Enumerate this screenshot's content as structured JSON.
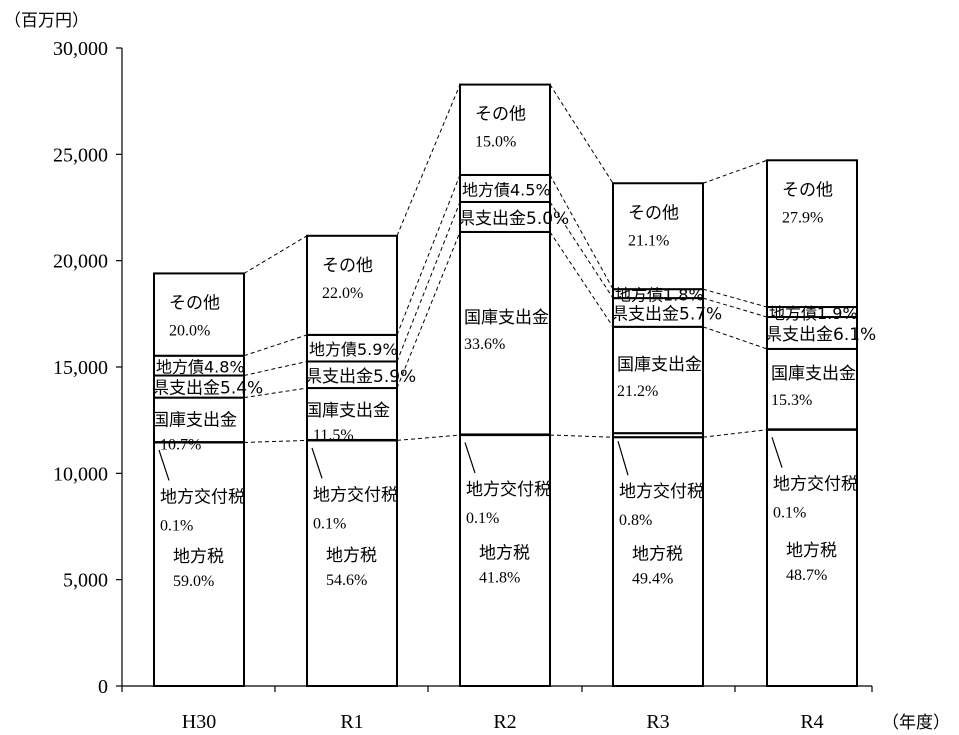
{
  "chart_data": {
    "type": "bar",
    "stacked": true,
    "y_unit_label": "（百万円）",
    "x_unit_label": "（年度）",
    "ylim": [
      0,
      30000
    ],
    "yticks": [
      "0",
      "5,000",
      "10,000",
      "15,000",
      "20,000",
      "25,000",
      "30,000"
    ],
    "ytick_values": [
      0,
      5000,
      10000,
      15000,
      20000,
      25000,
      30000
    ],
    "categories": [
      "H30",
      "R1",
      "R2",
      "R3",
      "R4"
    ],
    "grid": false,
    "legend": "none",
    "series": [
      {
        "key": "chihozei",
        "values": [
          11450,
          11550,
          11800,
          11700,
          12050
        ]
      },
      {
        "key": "kofuzei",
        "values": [
          20,
          20,
          30,
          190,
          20
        ]
      },
      {
        "key": "kokko",
        "values": [
          2090,
          2440,
          9520,
          5000,
          3780
        ]
      },
      {
        "key": "kenshi",
        "values": [
          1040,
          1250,
          1410,
          1350,
          1500
        ]
      },
      {
        "key": "chihosai",
        "values": [
          930,
          1250,
          1270,
          420,
          470
        ]
      },
      {
        "key": "sonota",
        "values": [
          3870,
          4660,
          4250,
          4980,
          6900
        ]
      }
    ],
    "totals": [
      19400,
      21170,
      28280,
      23640,
      24720
    ],
    "segment_labels": {
      "chihozei": {
        "name": "地方税",
        "pct": [
          "59.0%",
          "54.6%",
          "41.8%",
          "49.4%",
          "48.7%"
        ]
      },
      "kofuzei": {
        "name": "地方交付税",
        "pct": [
          "0.1%",
          "0.1%",
          "0.1%",
          "0.8%",
          "0.1%"
        ]
      },
      "kokko": {
        "name": "国庫支出金",
        "pct": [
          "10.7%",
          "11.5%",
          "33.6%",
          "21.2%",
          "15.3%"
        ]
      },
      "kenshi": {
        "name": "県支出金",
        "pct": [
          "5.4%",
          "5.9%",
          "5.0%",
          "5.7%",
          "6.1%"
        ]
      },
      "chihosai": {
        "name": "地方債",
        "pct": [
          "4.8%",
          "5.9%",
          "4.5%",
          "1.8%",
          "1.9%"
        ]
      },
      "sonota": {
        "name": "その他",
        "pct": [
          "20.0%",
          "22.0%",
          "15.0%",
          "21.1%",
          "27.9%"
        ]
      }
    }
  }
}
